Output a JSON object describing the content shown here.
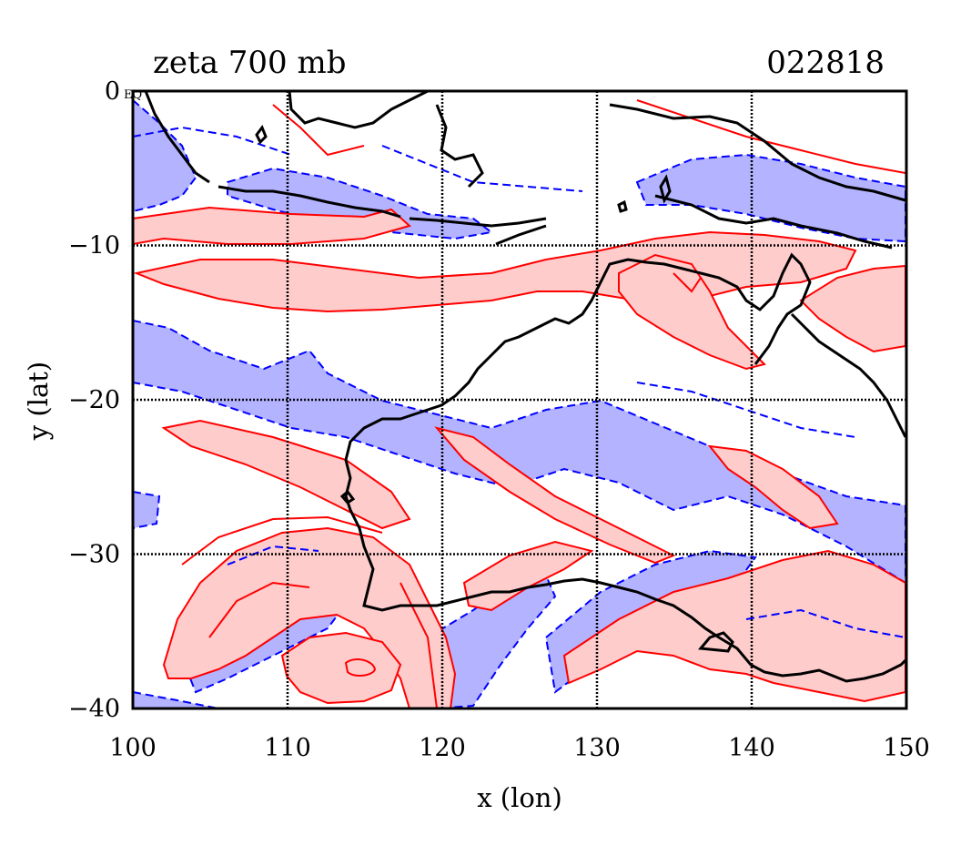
{
  "header": {
    "title": "zeta 700 mb",
    "date_code": "022818"
  },
  "axes": {
    "xlabel": "x (lon)",
    "ylabel": "y (lat)",
    "x_range": [
      100,
      150
    ],
    "y_range": [
      -40,
      0
    ],
    "x_ticks": [
      100,
      110,
      120,
      130,
      140,
      150
    ],
    "y_ticks": [
      0,
      -10,
      -20,
      -30,
      -40
    ],
    "x_tick_labels": [
      "100",
      "110",
      "120",
      "130",
      "140",
      "150"
    ],
    "y_tick_labels": [
      "0",
      "−10",
      "−20",
      "−30",
      "−40"
    ],
    "corner_mark": "EQ",
    "grid": true
  },
  "colors": {
    "positive_line": "#ff0000",
    "positive_fill": "#ffcccc",
    "negative_line": "#0000ff",
    "negative_fill": "#b3b3ff",
    "coast": "#000000"
  }
}
